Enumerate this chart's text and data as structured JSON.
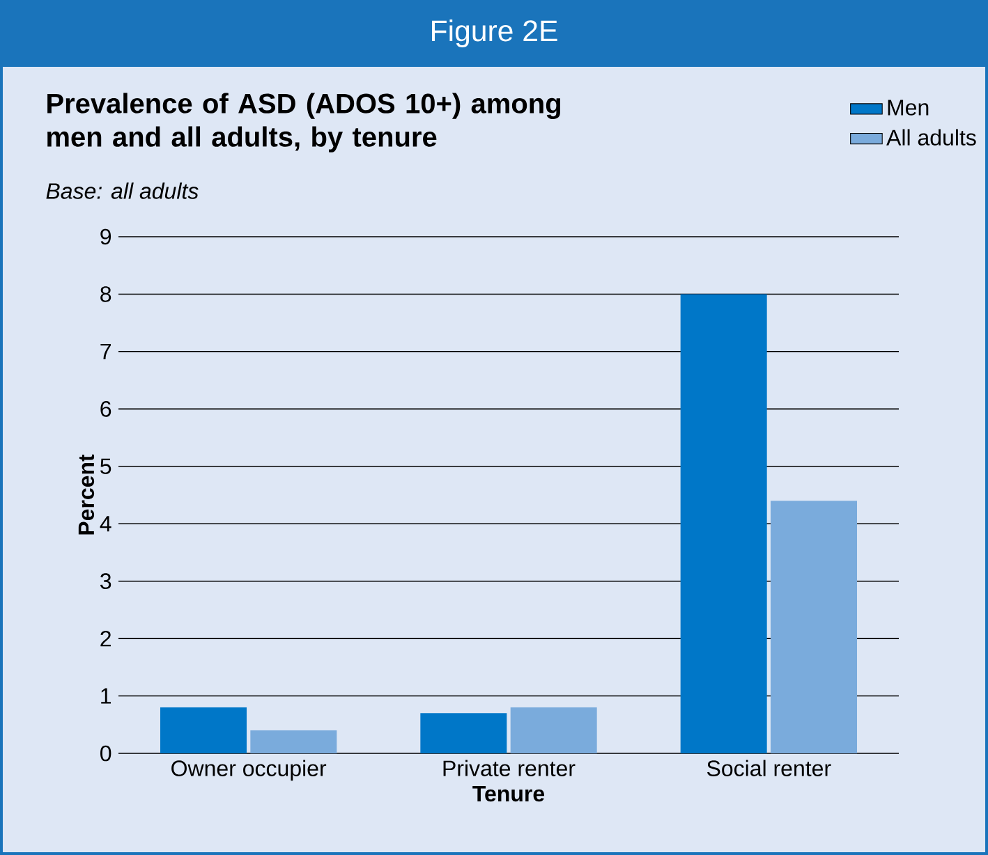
{
  "chart_data": {
    "type": "bar",
    "title": "Figure 2E",
    "subtitle": "Prevalence of ASD (ADOS 10+) among men and all adults, by tenure",
    "annotations": [
      "Base: all adults"
    ],
    "xlabel": "Tenure",
    "ylabel": "Percent",
    "categories": [
      "Owner occupier",
      "Private  renter",
      "Social renter"
    ],
    "series": [
      {
        "name": "Men",
        "color": "#0077c8",
        "values": [
          0.8,
          0.7,
          8.0
        ]
      },
      {
        "name": "All adults",
        "color": "#7aabdc",
        "values": [
          0.4,
          0.8,
          4.4
        ]
      }
    ],
    "ylim": [
      0,
      9
    ],
    "yticks": [
      0,
      1,
      2,
      3,
      4,
      5,
      6,
      7,
      8,
      9
    ],
    "grid": "y",
    "legend": "top right"
  }
}
